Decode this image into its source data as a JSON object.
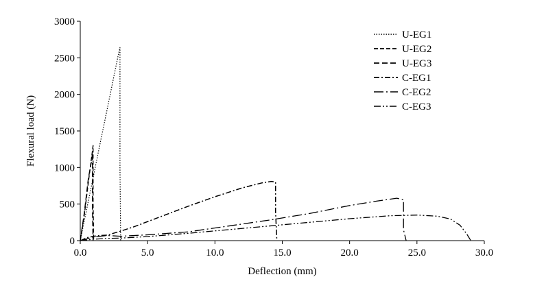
{
  "chart_data": {
    "type": "line",
    "xlabel": "Deflection (mm)",
    "ylabel": "Flexural load (N)",
    "xlim": [
      0,
      30
    ],
    "ylim": [
      0,
      3000
    ],
    "x_ticks": [
      0,
      5,
      10,
      15,
      20,
      25,
      30
    ],
    "x_tick_labels": [
      "0.0",
      "5.0",
      "10.0",
      "15.0",
      "20.0",
      "25.0",
      "30.0"
    ],
    "y_ticks": [
      0,
      500,
      1000,
      1500,
      2000,
      2500,
      3000
    ],
    "y_tick_labels": [
      "0",
      "500",
      "1000",
      "1500",
      "2000",
      "2500",
      "3000"
    ],
    "grid": false,
    "legend_position": "top-right",
    "series": [
      {
        "name": "U-EG1",
        "dash": "1.5,2",
        "width": 1.2,
        "color": "#000000",
        "x": [
          0,
          0.5,
          1.0,
          1.5,
          2.0,
          2.5,
          2.8,
          2.95,
          2.95,
          3.0
        ],
        "y": [
          0,
          450,
          900,
          1350,
          1800,
          2250,
          2520,
          2640,
          1000,
          0
        ]
      },
      {
        "name": "U-EG2",
        "dash": "6,3",
        "width": 1.4,
        "color": "#000000",
        "x": [
          0,
          0.3,
          0.6,
          0.85,
          0.95,
          0.95,
          1.0
        ],
        "y": [
          0,
          350,
          800,
          1150,
          1300,
          500,
          0
        ]
      },
      {
        "name": "U-EG3",
        "dash": "8,4",
        "width": 1.4,
        "color": "#000000",
        "x": [
          0,
          0.3,
          0.6,
          0.85,
          0.9,
          0.9,
          0.95
        ],
        "y": [
          0,
          380,
          850,
          1100,
          1200,
          450,
          0
        ]
      },
      {
        "name": "C-EG1",
        "dash": "8,3,2,3",
        "width": 1.5,
        "color": "#000000",
        "x": [
          0,
          0.5,
          1.0,
          1.5,
          2.0,
          3.0,
          4.0,
          6.0,
          8.0,
          10.0,
          12.0,
          13.5,
          14.2,
          14.5,
          14.5,
          14.6
        ],
        "y": [
          0,
          40,
          60,
          70,
          75,
          130,
          190,
          330,
          470,
          600,
          720,
          790,
          810,
          800,
          400,
          0
        ]
      },
      {
        "name": "C-EG2",
        "dash": "14,4,2,4",
        "width": 1.3,
        "color": "#000000",
        "x": [
          0,
          1.0,
          2.0,
          3.0,
          5.0,
          8.0,
          11.0,
          14.0,
          17.0,
          20.0,
          22.0,
          23.5,
          24.0,
          24.0,
          24.2
        ],
        "y": [
          0,
          50,
          70,
          60,
          80,
          120,
          200,
          280,
          370,
          480,
          540,
          580,
          560,
          150,
          0
        ]
      },
      {
        "name": "C-EG3",
        "dash": "10,3,2,3,2,3",
        "width": 1.3,
        "color": "#000000",
        "x": [
          0,
          1.0,
          2.0,
          3.0,
          5.0,
          8.0,
          11.0,
          14.0,
          17.0,
          20.0,
          23.0,
          25.0,
          26.5,
          27.5,
          28.2,
          28.7,
          29.0
        ],
        "y": [
          0,
          20,
          30,
          35,
          55,
          100,
          150,
          200,
          250,
          300,
          340,
          350,
          335,
          295,
          210,
          90,
          0
        ]
      }
    ]
  }
}
